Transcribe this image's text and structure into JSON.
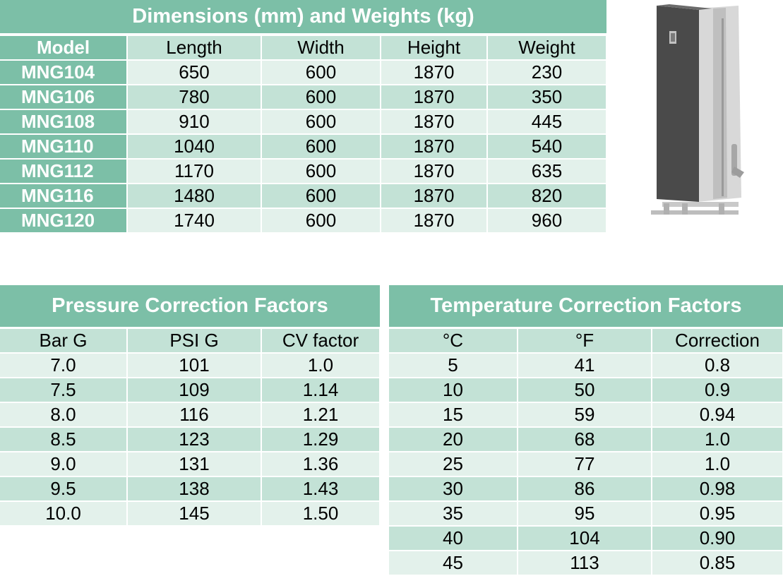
{
  "dimensions": {
    "title": "Dimensions (mm) and Weights (kg)",
    "headers": [
      "Model",
      "Length",
      "Width",
      "Height",
      "Weight"
    ],
    "rows": [
      [
        "MNG104",
        "650",
        "600",
        "1870",
        "230"
      ],
      [
        "MNG106",
        "780",
        "600",
        "1870",
        "350"
      ],
      [
        "MNG108",
        "910",
        "600",
        "1870",
        "445"
      ],
      [
        "MNG110",
        "1040",
        "600",
        "1870",
        "540"
      ],
      [
        "MNG112",
        "1170",
        "600",
        "1870",
        "635"
      ],
      [
        "MNG116",
        "1480",
        "600",
        "1870",
        "820"
      ],
      [
        "MNG120",
        "1740",
        "600",
        "1870",
        "960"
      ]
    ]
  },
  "pressure": {
    "title": "Pressure Correction Factors",
    "headers": [
      "Bar G",
      "PSI G",
      "CV factor"
    ],
    "rows": [
      [
        "7.0",
        "101",
        "1.0"
      ],
      [
        "7.5",
        "109",
        "1.14"
      ],
      [
        "8.0",
        "116",
        "1.21"
      ],
      [
        "8.5",
        "123",
        "1.29"
      ],
      [
        "9.0",
        "131",
        "1.36"
      ],
      [
        "9.5",
        "138",
        "1.43"
      ],
      [
        "10.0",
        "145",
        "1.50"
      ]
    ]
  },
  "temperature": {
    "title": "Temperature Correction Factors",
    "headers": [
      "°C",
      "°F",
      "Correction"
    ],
    "rows": [
      [
        "5",
        "41",
        "0.8"
      ],
      [
        "10",
        "50",
        "0.9"
      ],
      [
        "15",
        "59",
        "0.94"
      ],
      [
        "20",
        "68",
        "1.0"
      ],
      [
        "25",
        "77",
        "1.0"
      ],
      [
        "30",
        "86",
        "0.98"
      ],
      [
        "35",
        "95",
        "0.95"
      ],
      [
        "40",
        "104",
        "0.90"
      ],
      [
        "45",
        "113",
        "0.85"
      ]
    ]
  },
  "colors": {
    "header_green": "#7cbfa7",
    "row_light": "#e3f1eb",
    "row_mid": "#c3e2d6"
  },
  "image": {
    "icon": "nitrogen-generator-cabinet-icon"
  }
}
